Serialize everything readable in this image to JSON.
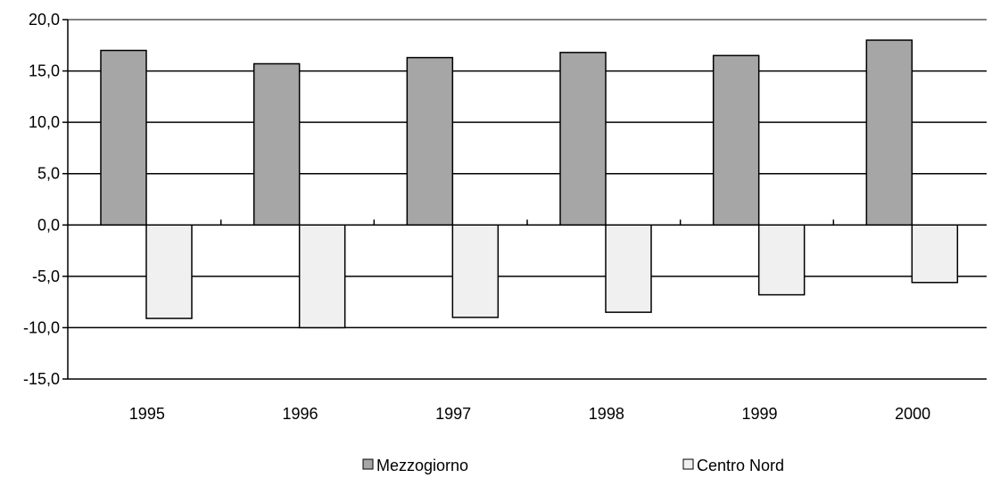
{
  "chart_data": {
    "type": "bar",
    "title": "",
    "xlabel": "",
    "ylabel": "",
    "categories": [
      "1995",
      "1996",
      "1997",
      "1998",
      "1999",
      "2000"
    ],
    "series": [
      {
        "name": "Mezzogiorno",
        "values": [
          17.0,
          15.7,
          16.3,
          16.8,
          16.5,
          18.0
        ],
        "color": "#a6a6a6"
      },
      {
        "name": "Centro Nord",
        "values": [
          -9.1,
          -10.0,
          -9.0,
          -8.5,
          -6.8,
          -5.6
        ],
        "color": "#f0f0f0"
      }
    ],
    "ylim": [
      -15,
      20
    ],
    "yticks": [
      20,
      15,
      10,
      5,
      0,
      -5,
      -10,
      -15
    ],
    "ytick_labels": [
      "20,0",
      "15,0",
      "10,0",
      "5,0",
      "0,0",
      "-5,0",
      "-10,0",
      "-15,0"
    ],
    "grid": true,
    "legend_position": "bottom"
  }
}
